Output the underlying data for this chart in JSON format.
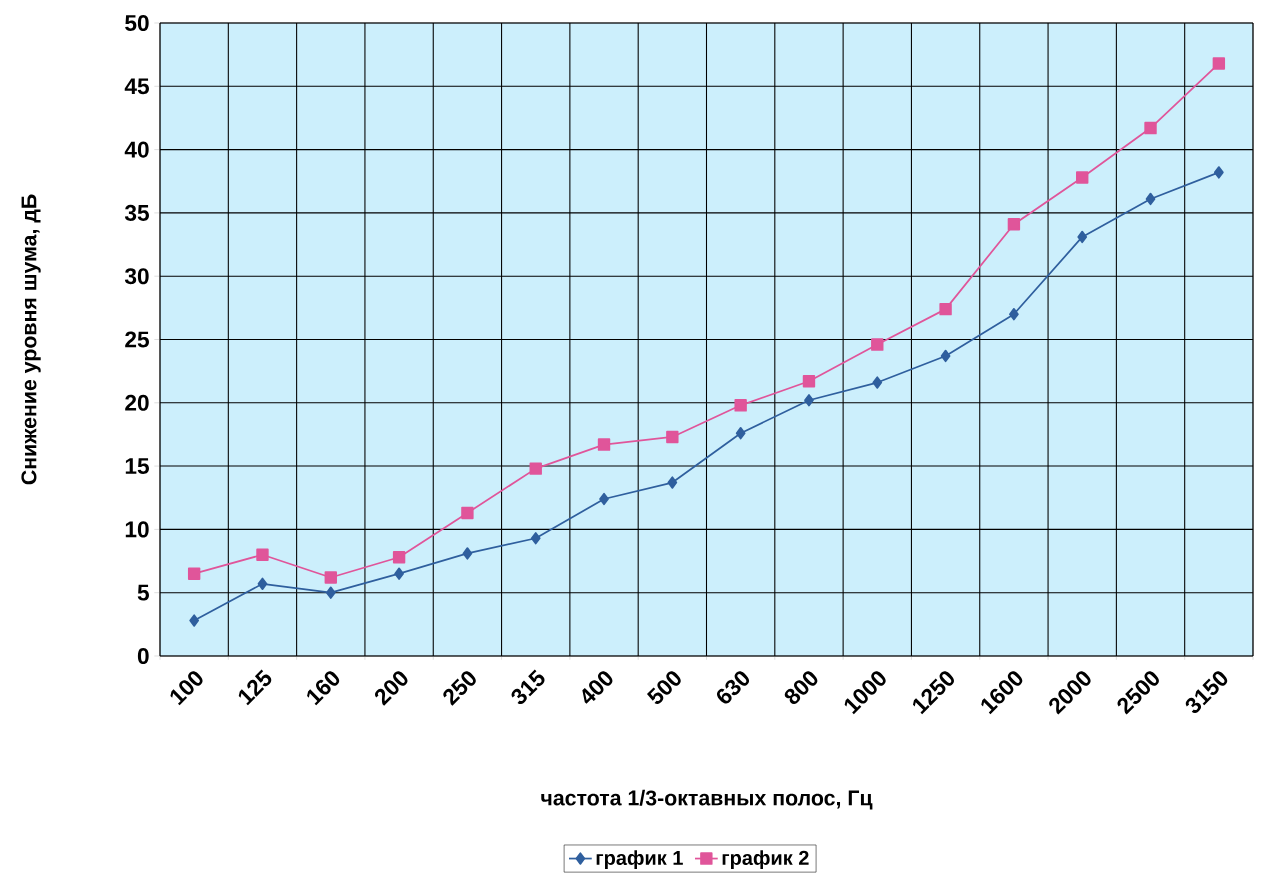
{
  "chart_data": {
    "type": "line",
    "xlabel": "частота 1/3-октавных полос, Гц",
    "ylabel": "Снижение уровня шума, дБ",
    "categories": [
      "100",
      "125",
      "160",
      "200",
      "250",
      "315",
      "400",
      "500",
      "630",
      "800",
      "1000",
      "1250",
      "1600",
      "2000",
      "2500",
      "3150"
    ],
    "series": [
      {
        "name": "график 1",
        "color": "#2f5f9e",
        "marker": "diamond",
        "values": [
          2.8,
          5.7,
          5.0,
          6.5,
          8.1,
          9.3,
          12.4,
          13.7,
          17.6,
          20.2,
          21.6,
          23.7,
          27.0,
          33.1,
          36.1,
          38.2
        ]
      },
      {
        "name": "график 2",
        "color": "#e0559a",
        "marker": "square",
        "values": [
          6.5,
          8.0,
          6.2,
          7.8,
          11.3,
          14.8,
          16.7,
          17.3,
          19.8,
          21.7,
          24.6,
          27.4,
          34.1,
          37.8,
          41.7,
          46.8
        ]
      }
    ],
    "ylim": [
      0,
      50
    ],
    "yticks": [
      0,
      5,
      10,
      15,
      20,
      25,
      30,
      35,
      40,
      45,
      50
    ],
    "grid": true,
    "legend": "bottom",
    "line_style": "solid"
  }
}
